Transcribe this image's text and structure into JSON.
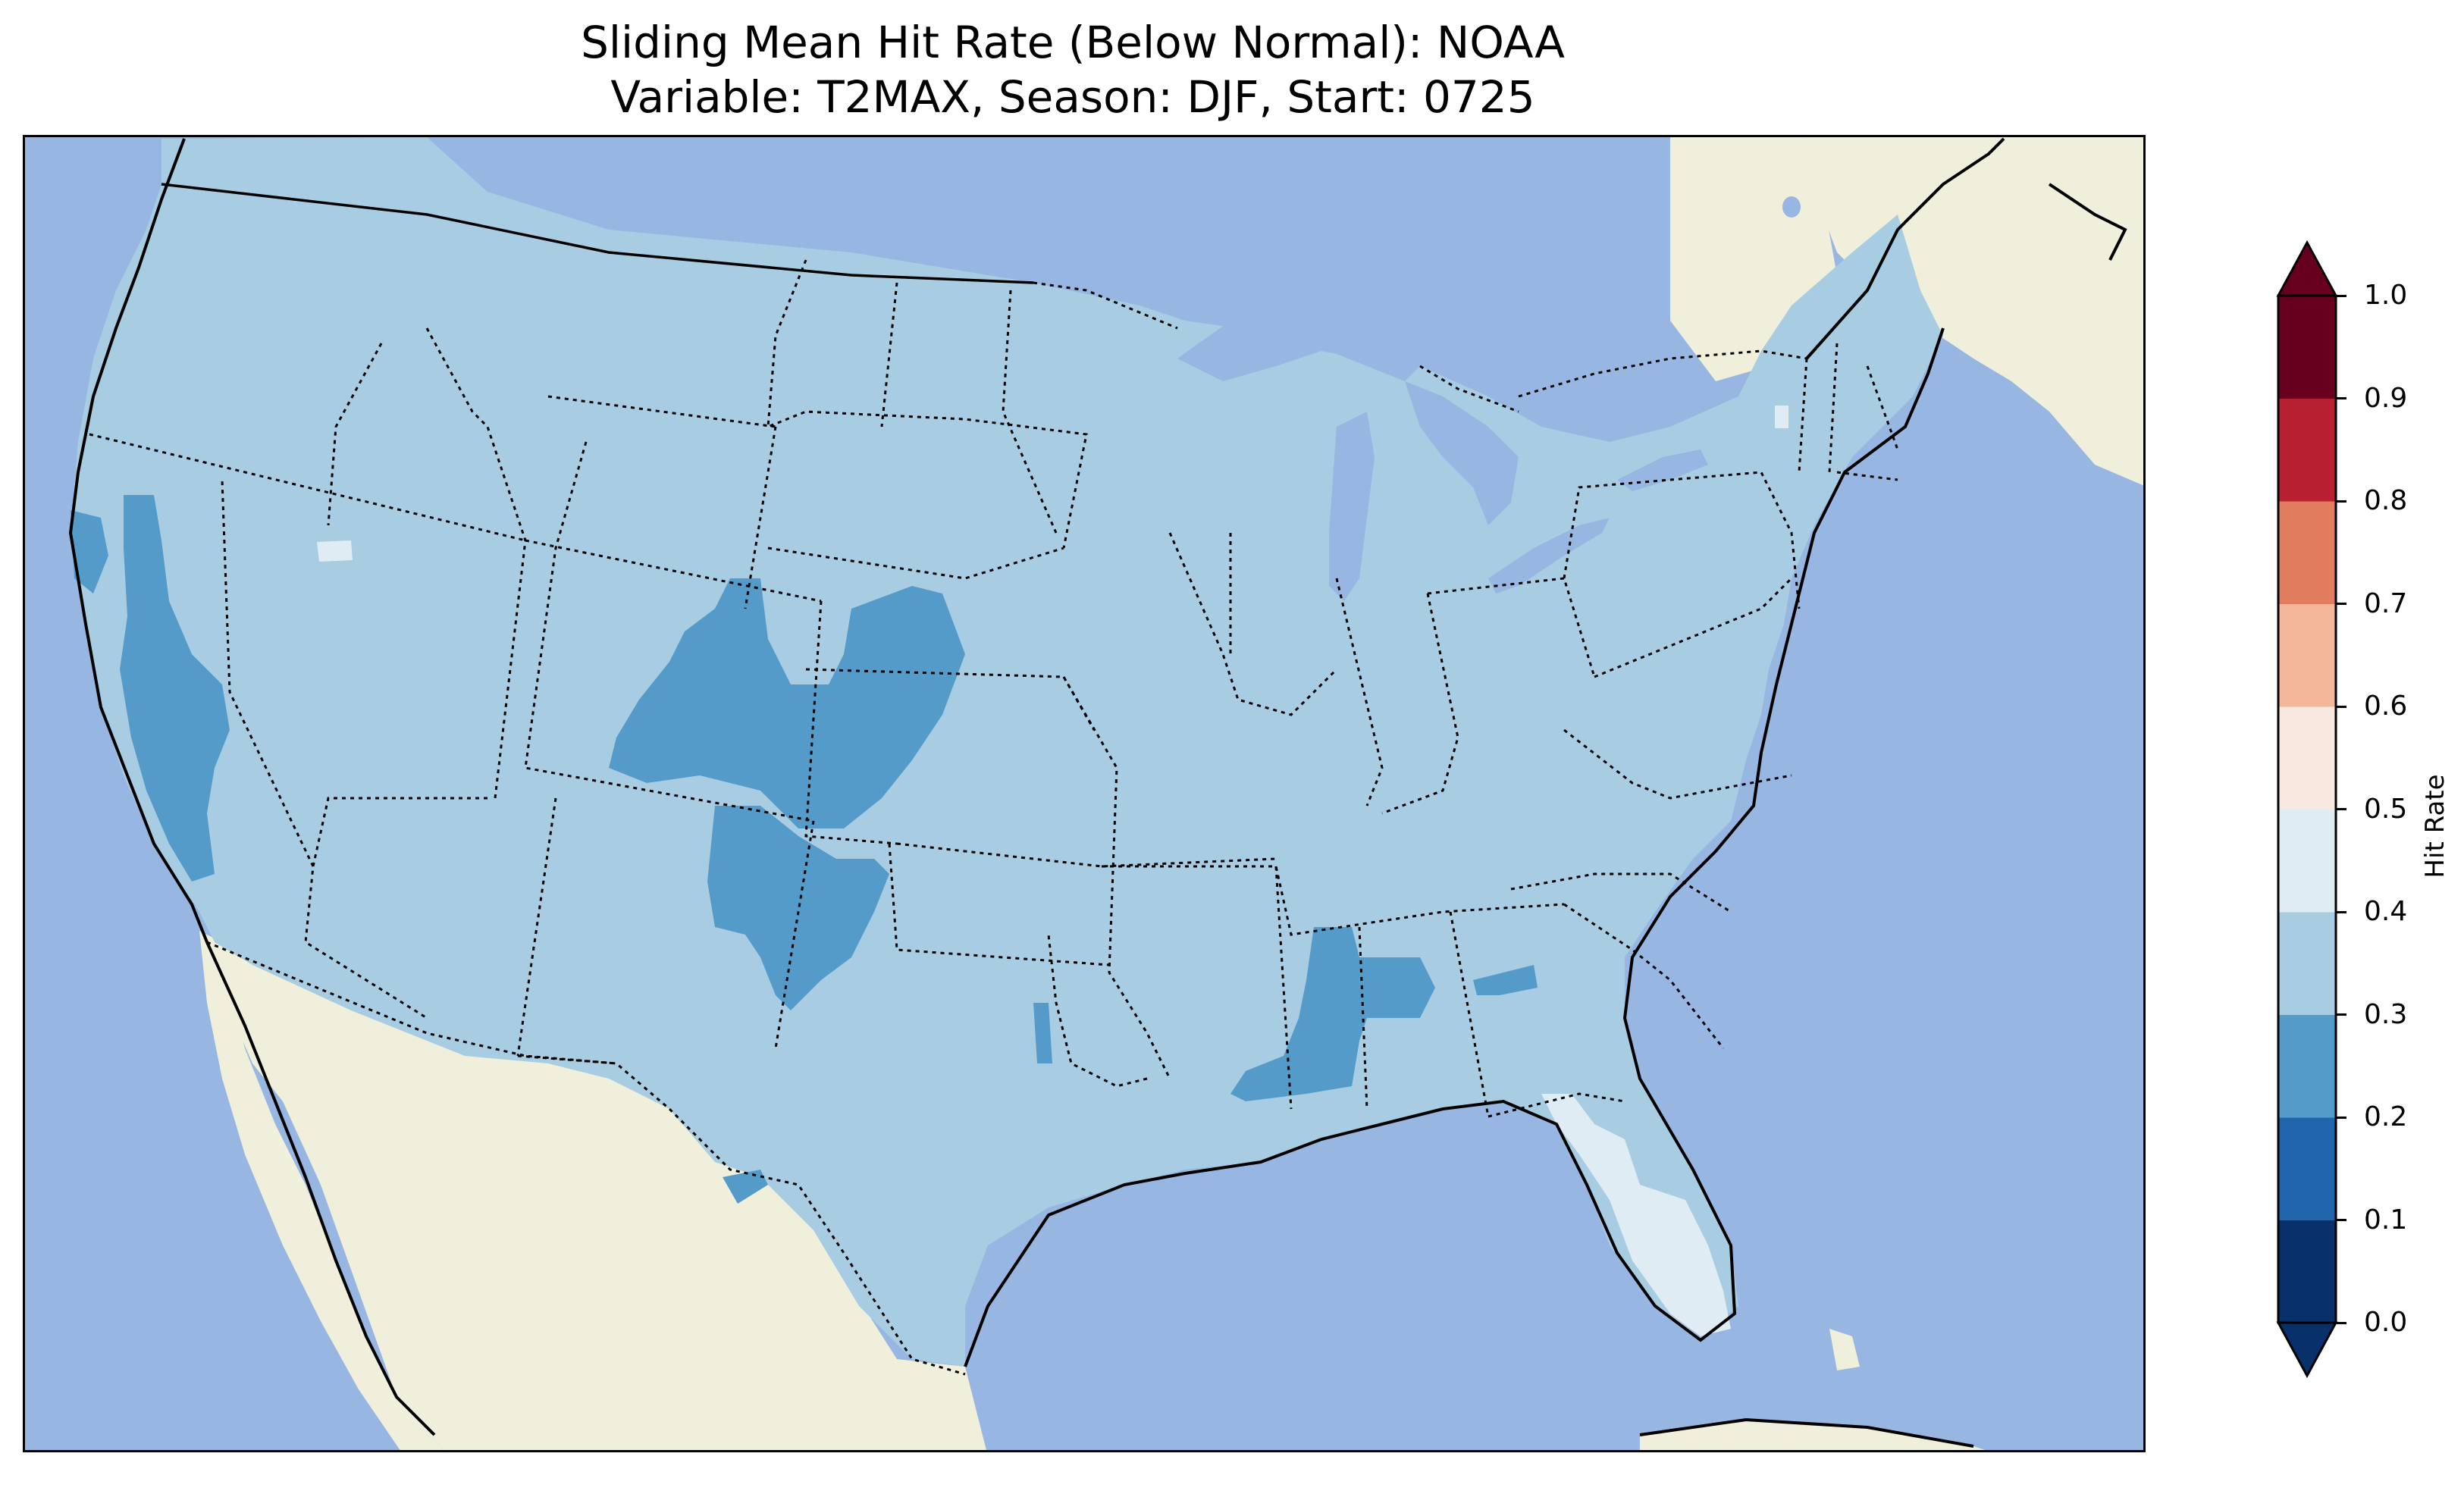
{
  "title": {
    "line1": "Sliding Mean Hit Rate (Below Normal): NOAA",
    "line2": "Variable: T2MAX, Season: DJF, Start: 0725"
  },
  "map": {
    "projection": "lambert-conformal",
    "region": "CONUS",
    "colors": {
      "ocean": "#97b6e1",
      "land": "#efefdb",
      "coastline": "#000000",
      "state_border": "#000000"
    },
    "dominant_class": "0.3-0.4",
    "features": [
      {
        "name": "California Central Valley",
        "class": "0.2-0.3"
      },
      {
        "name": "Colorado Rockies / Front Range",
        "class": "0.2-0.3"
      },
      {
        "name": "New Mexico",
        "class": "0.2-0.3"
      },
      {
        "name": "Mississippi / Alabama",
        "class": "0.2-0.3"
      },
      {
        "name": "Florida Peninsula",
        "class": "0.4-0.5"
      }
    ]
  },
  "colorbar": {
    "label": "Hit Rate",
    "extend": "both",
    "ticks": [
      "0.0",
      "0.1",
      "0.2",
      "0.3",
      "0.4",
      "0.5",
      "0.6",
      "0.7",
      "0.8",
      "0.9",
      "1.0"
    ],
    "colors": [
      "#053061",
      "#2166ac",
      "#4393c3",
      "#92c5de",
      "#d1e5f0",
      "#f7f7f7",
      "#fddbc7",
      "#f4a582",
      "#d6604d",
      "#b2182b"
    ],
    "bin_colors": [
      "#08306b",
      "#2166ac",
      "#559bc9",
      "#a8cde2",
      "#e0ecf4",
      "#f8e8e0",
      "#f5b799",
      "#e17c5f",
      "#b8202f",
      "#67001f"
    ]
  }
}
